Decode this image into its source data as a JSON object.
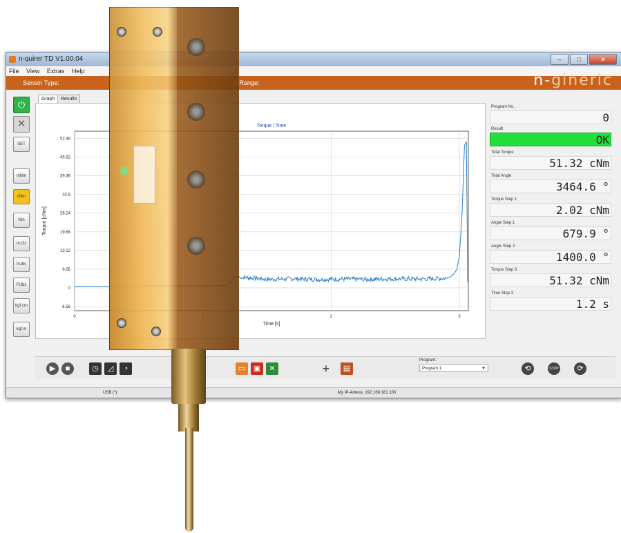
{
  "window": {
    "title": "n-quirer TD V1.00.04",
    "buttons": [
      "–",
      "□",
      "✕"
    ]
  },
  "menu": [
    "File",
    "View",
    "Extras",
    "Help"
  ],
  "header": {
    "sensor_type_label": "Sensor Type:",
    "torque_range_label": "e Range:",
    "logo_part1": "n-",
    "logo_part2": "gineric"
  },
  "left_buttons": {
    "power_icon": "⏻",
    "cancel_icon": "✕",
    "set": "SET",
    "units": [
      "mNm",
      "cNm",
      "Nm",
      "In.Oz",
      "In.lbs",
      "Ft.lbs",
      "kgf.cm",
      "kgf.m"
    ],
    "active_unit": "cNm"
  },
  "tabs": [
    "Graph",
    "Results"
  ],
  "chart_data": {
    "type": "line",
    "title": "Torque / Time",
    "xlabel": "Time [s]",
    "ylabel": "Torque [cNm]",
    "xlim": [
      0,
      3.07
    ],
    "ylim": [
      -8.0,
      55.0
    ],
    "x_ticks": [
      "0",
      "1",
      "2",
      "3"
    ],
    "x_tick_values": [
      0,
      1,
      2,
      3
    ],
    "y_ticks": [
      "52.48",
      "45.92",
      "39.36",
      "32.8",
      "26.24",
      "19.68",
      "13.12",
      "6.56",
      "0",
      "-6.56"
    ],
    "y_tick_values": [
      52.48,
      45.92,
      39.36,
      32.8,
      26.24,
      19.68,
      13.12,
      6.56,
      0,
      -6.56
    ],
    "grid": true,
    "series": [
      {
        "color": "#2a7fc6",
        "x": [
          0,
          0.3,
          0.6,
          0.9,
          1.2,
          1.25,
          1.3,
          1.5,
          1.7,
          1.9,
          2.1,
          2.3,
          2.5,
          2.7,
          2.9,
          2.98,
          3.0,
          3.02,
          3.04,
          3.055,
          3.065
        ],
        "y": [
          0.6,
          0.6,
          0.7,
          0.7,
          0.9,
          4.0,
          3.8,
          3.0,
          3.2,
          3.0,
          3.1,
          3.0,
          3.2,
          3.1,
          3.4,
          6.5,
          11.0,
          25.0,
          50.0,
          51.32,
          2.0
        ]
      }
    ]
  },
  "results": {
    "program_no_label": "Program No.",
    "program_no": "0",
    "result_label": "Result",
    "result": "OK",
    "total_torque_label": "Total Torque",
    "total_torque": "51.32 cNm",
    "total_angle_label": "Total Angle",
    "total_angle": "3464.6 °",
    "torque_step1_label": "Torque Step 1",
    "torque_step1": "2.02 cNm",
    "angle_step1_label": "Angle Step 1",
    "angle_step1": "679.9 °",
    "angle_step2_label": "Angle Step 2",
    "angle_step2": "1400.0 °",
    "torque_step3_label": "Torque Step 3",
    "torque_step3": "51.32 cNm",
    "time_step3_label": "Time Step 3",
    "time_step3": "1.2 s"
  },
  "toolbar": {
    "program_label": "Program:",
    "program_value": "Program 1",
    "stop_label": "STOP",
    "colors": {
      "play": "#444444",
      "red": "#cc2b1f",
      "orange": "#e8822a",
      "excel": "#2e8b3a",
      "grid": "#c0521f"
    }
  },
  "status": {
    "usb": "USB (*)",
    "ip": "My IP-Adress: 192.168.181.100"
  },
  "colors": {
    "accent_orange": "#c8621c",
    "ok_green": "#22e03a",
    "active_unit": "#f3c11c",
    "device_gold": "#d9a24a"
  }
}
